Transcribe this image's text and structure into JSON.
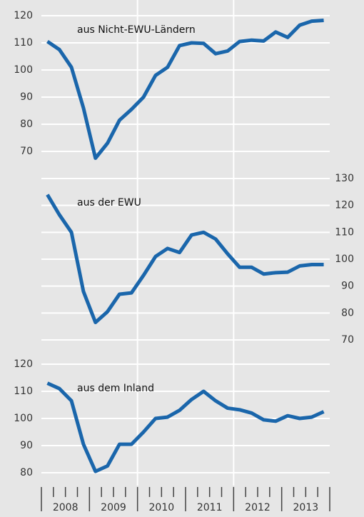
{
  "chart_data": [
    {
      "type": "line",
      "title": "aus Nicht-EWU-Ländern",
      "axis_side": "left",
      "color": "#1a66ab",
      "x": [
        2008.125,
        2008.375,
        2008.625,
        2008.875,
        2009.125,
        2009.375,
        2009.625,
        2009.875,
        2010.125,
        2010.375,
        2010.625,
        2010.875,
        2011.125,
        2011.375,
        2011.625,
        2011.875,
        2012.125,
        2012.375,
        2012.625,
        2012.875,
        2013.125,
        2013.375,
        2013.625,
        2013.875
      ],
      "values": [
        110.5,
        107.5,
        101,
        86,
        67.5,
        73,
        81.5,
        85.5,
        90,
        98,
        101,
        109,
        110,
        109.8,
        106,
        107,
        110.5,
        111,
        110.7,
        114,
        112,
        116.5,
        118,
        118.3
      ],
      "xlim": [
        2008,
        2014
      ],
      "ylim": [
        70,
        120
      ],
      "yticks": [
        70,
        80,
        90,
        100,
        110,
        120
      ],
      "vgrid": [
        2010,
        2012
      ],
      "grid": true
    },
    {
      "type": "line",
      "title": "aus der EWU",
      "axis_side": "right",
      "color": "#1a66ab",
      "x": [
        2008.125,
        2008.375,
        2008.625,
        2008.875,
        2009.125,
        2009.375,
        2009.625,
        2009.875,
        2010.125,
        2010.375,
        2010.625,
        2010.875,
        2011.125,
        2011.375,
        2011.625,
        2011.875,
        2012.125,
        2012.375,
        2012.625,
        2012.875,
        2013.125,
        2013.375,
        2013.625,
        2013.875
      ],
      "values": [
        124,
        116.5,
        110,
        88,
        76.5,
        80.5,
        87,
        87.5,
        94,
        101,
        104,
        102.5,
        109,
        110,
        107.5,
        102,
        97,
        97,
        94.5,
        95,
        95.2,
        97.5,
        98,
        98
      ],
      "xlim": [
        2008,
        2014
      ],
      "ylim": [
        70,
        130
      ],
      "yticks": [
        70,
        80,
        90,
        100,
        110,
        120,
        130
      ],
      "vgrid": [
        2010,
        2012
      ],
      "grid": true
    },
    {
      "type": "line",
      "title": "aus dem Inland",
      "axis_side": "left",
      "color": "#1a66ab",
      "x": [
        2008.125,
        2008.375,
        2008.625,
        2008.875,
        2009.125,
        2009.375,
        2009.625,
        2009.875,
        2010.125,
        2010.375,
        2010.625,
        2010.875,
        2011.125,
        2011.375,
        2011.625,
        2011.875,
        2012.125,
        2012.375,
        2012.625,
        2012.875,
        2013.125,
        2013.375,
        2013.625,
        2013.875
      ],
      "values": [
        113,
        111,
        106.5,
        90.5,
        80.5,
        82.5,
        90.5,
        90.5,
        95,
        100,
        100.5,
        103,
        107,
        110,
        106.5,
        103.8,
        103.2,
        102,
        99.5,
        99,
        101,
        100,
        100.5,
        102.5
      ],
      "xlim": [
        2008,
        2014
      ],
      "ylim": [
        80,
        120
      ],
      "yticks": [
        80,
        90,
        100,
        110,
        120
      ],
      "vgrid": [
        2010,
        2012
      ],
      "grid": true,
      "xticks": [
        {
          "value": 2008.5,
          "label": "2008"
        },
        {
          "value": 2009.5,
          "label": "2009"
        },
        {
          "value": 2010.5,
          "label": "2010"
        },
        {
          "value": 2011.5,
          "label": "2011"
        },
        {
          "value": 2012.5,
          "label": "2012"
        },
        {
          "value": 2013.5,
          "label": "2013"
        }
      ]
    }
  ]
}
